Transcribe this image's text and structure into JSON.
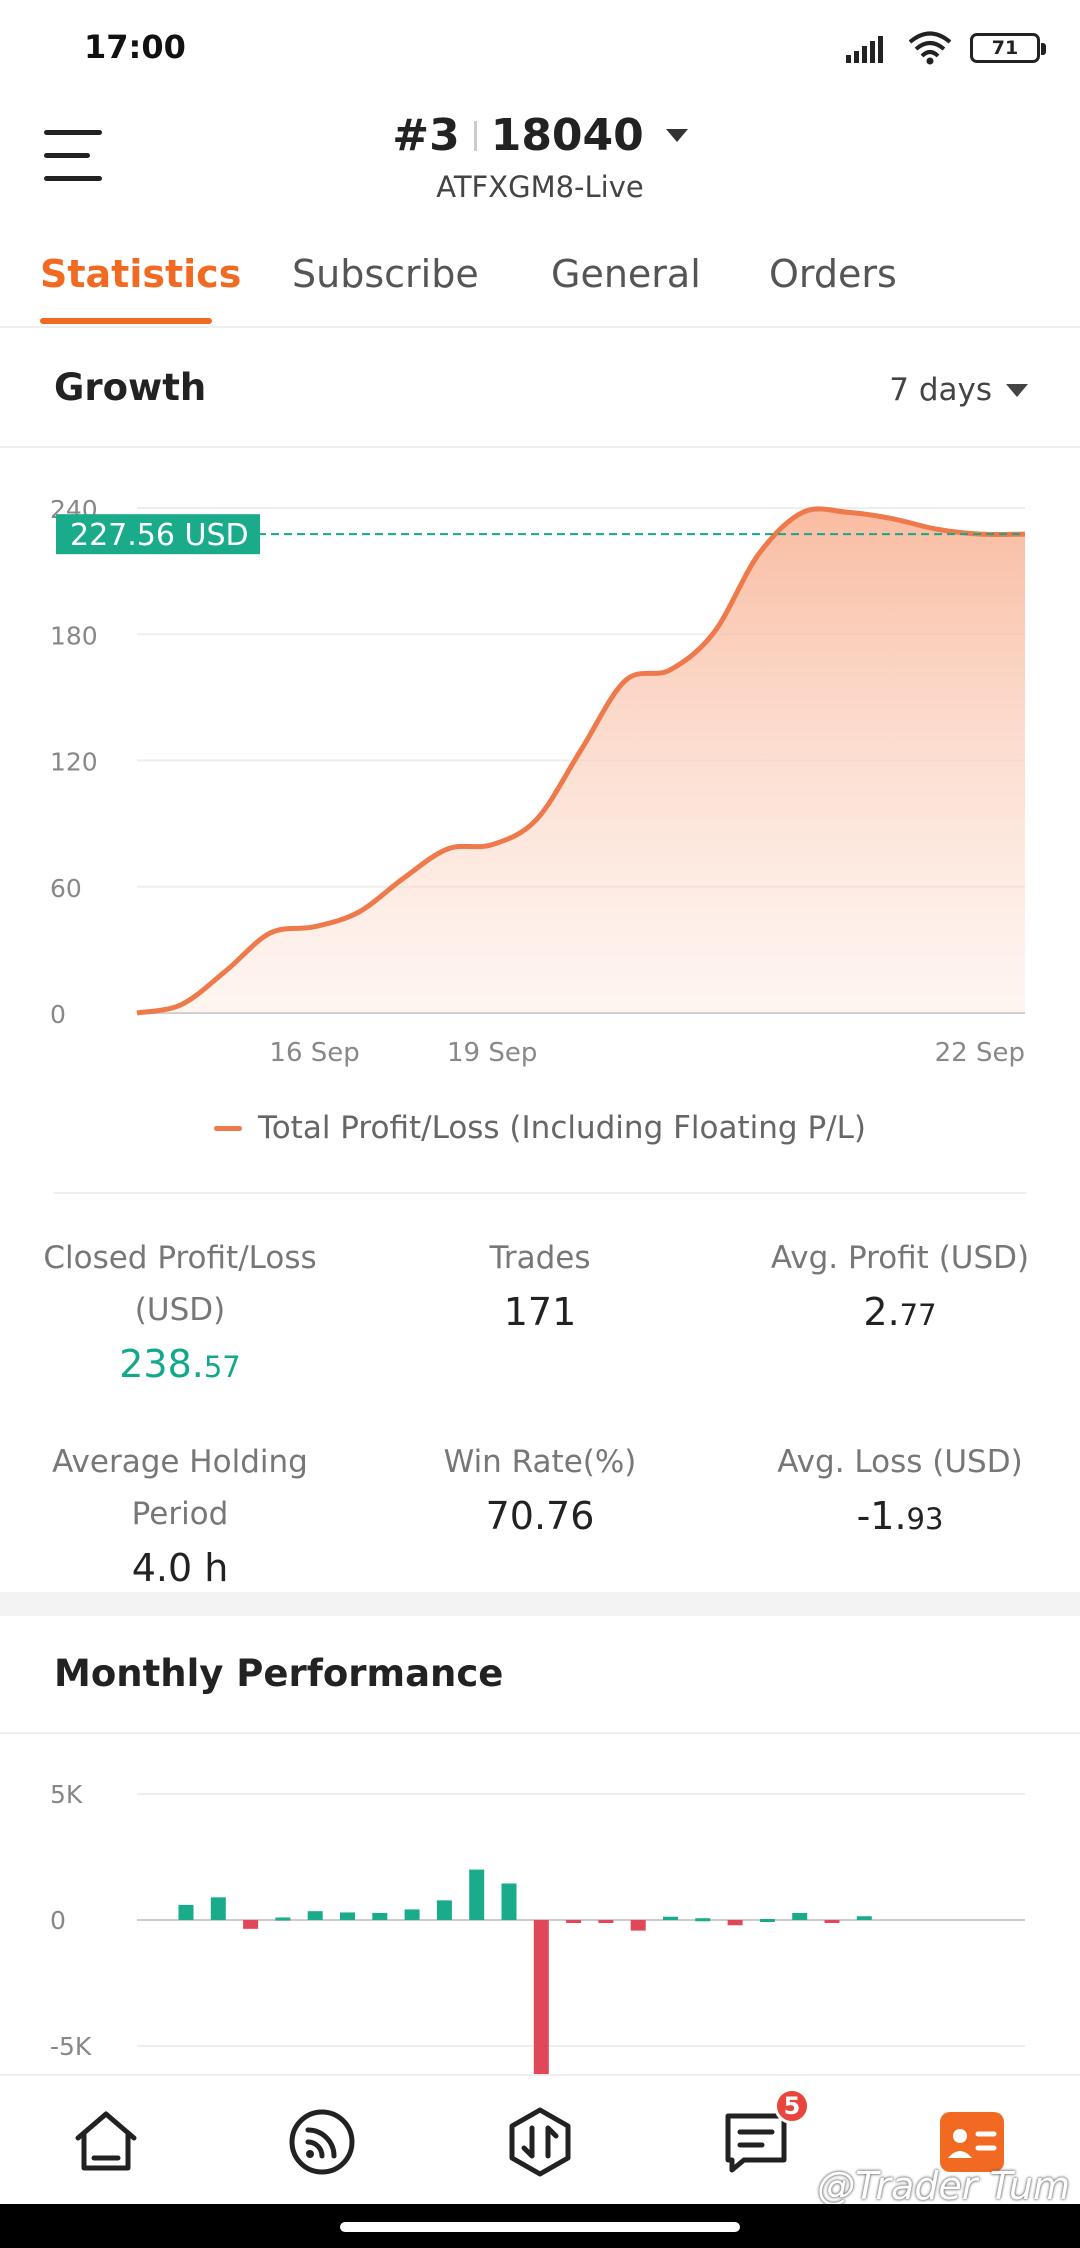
{
  "status_bar": {
    "time": "17:00",
    "battery": "71"
  },
  "header": {
    "account_number": "#3",
    "account_id": "18040",
    "server": "ATFXGM8-Live"
  },
  "tabs": [
    {
      "label": "Statistics",
      "active": true
    },
    {
      "label": "Subscribe",
      "active": false
    },
    {
      "label": "General",
      "active": false
    },
    {
      "label": "Orders",
      "active": false
    }
  ],
  "growth": {
    "title": "Growth",
    "range": "7 days",
    "current_label": "227.56 USD",
    "legend": "Total Profit/Loss (Including Floating P/L)"
  },
  "chart_data": [
    {
      "type": "area",
      "title": "Growth",
      "y_ticks": [
        "0",
        "60",
        "120",
        "180",
        "240"
      ],
      "ylim": [
        0,
        240
      ],
      "x_ticks": [
        {
          "label": "16 Sep",
          "x": 2
        },
        {
          "label": "19 Sep",
          "x": 4
        },
        {
          "label": "22 Sep",
          "x": 10
        }
      ],
      "x": [
        0,
        0.5,
        1,
        1.5,
        2,
        2.5,
        3,
        3.5,
        4,
        4.5,
        5,
        5.5,
        6,
        6.5,
        7,
        7.5,
        8,
        8.5,
        9,
        9.5,
        10
      ],
      "values": [
        0,
        4,
        20,
        38,
        41,
        48,
        64,
        78,
        80,
        92,
        125,
        158,
        163,
        181,
        218,
        238,
        238,
        235,
        230,
        227.56,
        227.56
      ],
      "series": [
        {
          "name": "Total Profit/Loss (Including Floating P/L)"
        }
      ],
      "reference_line": 227.56,
      "colors": {
        "line": "#ee7a4c",
        "fill": "#f9b89c",
        "reference": "#12a98b"
      },
      "grid": true
    },
    {
      "type": "bar",
      "title": "Monthly Performance",
      "y_ticks": [
        "5K",
        "0",
        "-5K"
      ],
      "ylim": [
        -5000,
        5000
      ],
      "values": [
        600,
        900,
        -350,
        100,
        350,
        300,
        280,
        420,
        780,
        2000,
        1450,
        -6500,
        -30,
        -80,
        -420,
        130,
        70,
        -210,
        40,
        280,
        -90,
        150
      ],
      "colors": {
        "positive": "#1aab8a",
        "negative": "#e0485a"
      },
      "grid": true
    }
  ],
  "stats": {
    "closed_pl_label": "Closed Profit/Loss",
    "closed_pl_unit": "(USD)",
    "closed_pl_int": "238.",
    "closed_pl_dec": "57",
    "trades_label": "Trades",
    "trades_value": "171",
    "avg_profit_label": "Avg. Profit (USD)",
    "avg_profit_int": "2.",
    "avg_profit_dec": "77",
    "holding_label": "Average Holding Period",
    "holding_value": "4.0 h",
    "winrate_label": "Win Rate(%)",
    "winrate_value": "70.76",
    "avg_loss_label": "Avg. Loss (USD)",
    "avg_loss_int": "-1.",
    "avg_loss_dec": "93"
  },
  "monthly": {
    "title": "Monthly Performance"
  },
  "bottom_nav": {
    "items": [
      "home-icon",
      "signal-feed-icon",
      "trade-icon",
      "messages-icon",
      "profile-card-icon"
    ],
    "messages_badge": "5"
  },
  "watermark": "@Trader Tum"
}
